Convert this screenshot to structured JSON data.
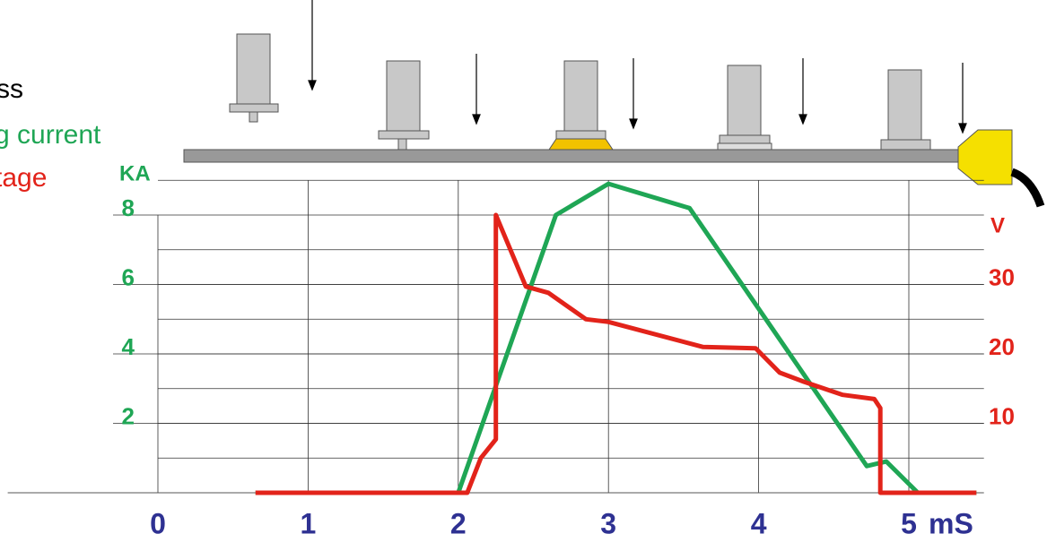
{
  "chart_data": {
    "type": "line",
    "annotations": [
      {
        "text": "ss",
        "color": "#000000"
      }
    ],
    "y_label": "KA",
    "y2_label": "V",
    "x_label": "mS",
    "xlim": [
      -1,
      5.5
    ],
    "xticks": [
      0,
      1,
      2,
      3,
      4,
      5
    ],
    "ylim": [
      0,
      9
    ],
    "yticks": [
      2,
      4,
      6,
      8
    ],
    "ygrid": [
      1,
      3,
      5,
      7,
      9
    ],
    "y2lim": [
      0,
      45
    ],
    "y2ticks": [
      10,
      20,
      30
    ],
    "grid": true,
    "series": [
      {
        "name": "g current",
        "color": "#1fa655",
        "x": [
          0.65,
          2.0,
          2.65,
          3.0,
          3.54,
          4.72,
          4.85,
          5.06,
          5.45
        ],
        "values": [
          0,
          0,
          8,
          8.9,
          8.2,
          0.77,
          0.9,
          0,
          0
        ]
      },
      {
        "name": "tage",
        "color": "#e2231a",
        "axis": "y2",
        "x": [
          0.65,
          2.06,
          2.15,
          2.25,
          2.25,
          2.45,
          2.6,
          2.85,
          3.0,
          3.63,
          3.98,
          4.14,
          4.3,
          4.56,
          4.77,
          4.81,
          4.81,
          5.45
        ],
        "values": [
          0,
          0,
          5,
          7.7,
          40,
          29.7,
          28.8,
          25,
          24.6,
          21,
          20.8,
          17.3,
          16,
          14.1,
          13.5,
          12.2,
          0,
          0
        ]
      }
    ]
  }
}
